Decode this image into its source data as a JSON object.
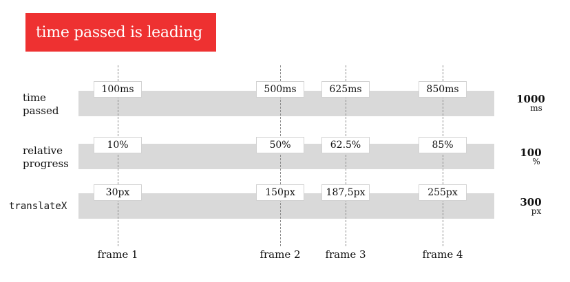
{
  "title": "time passed is leading",
  "colors": {
    "banner": "#ee3131",
    "band": "#d9d9d9",
    "text": "#111111"
  },
  "rows": [
    {
      "label_lines": [
        "time",
        "passed"
      ],
      "values": [
        "100ms",
        "500ms",
        "625ms",
        "850ms"
      ],
      "total": "1000",
      "unit": "ms"
    },
    {
      "label_lines": [
        "relative",
        "progress"
      ],
      "values": [
        "10%",
        "50%",
        "62.5%",
        "85%"
      ],
      "total": "100",
      "unit": "%"
    },
    {
      "label_lines": [
        "translateX"
      ],
      "values": [
        "30px",
        "150px",
        "187,5px",
        "255px"
      ],
      "total": "300",
      "unit": "px"
    }
  ],
  "frames": [
    "frame 1",
    "frame 2",
    "frame 3",
    "frame 4"
  ]
}
